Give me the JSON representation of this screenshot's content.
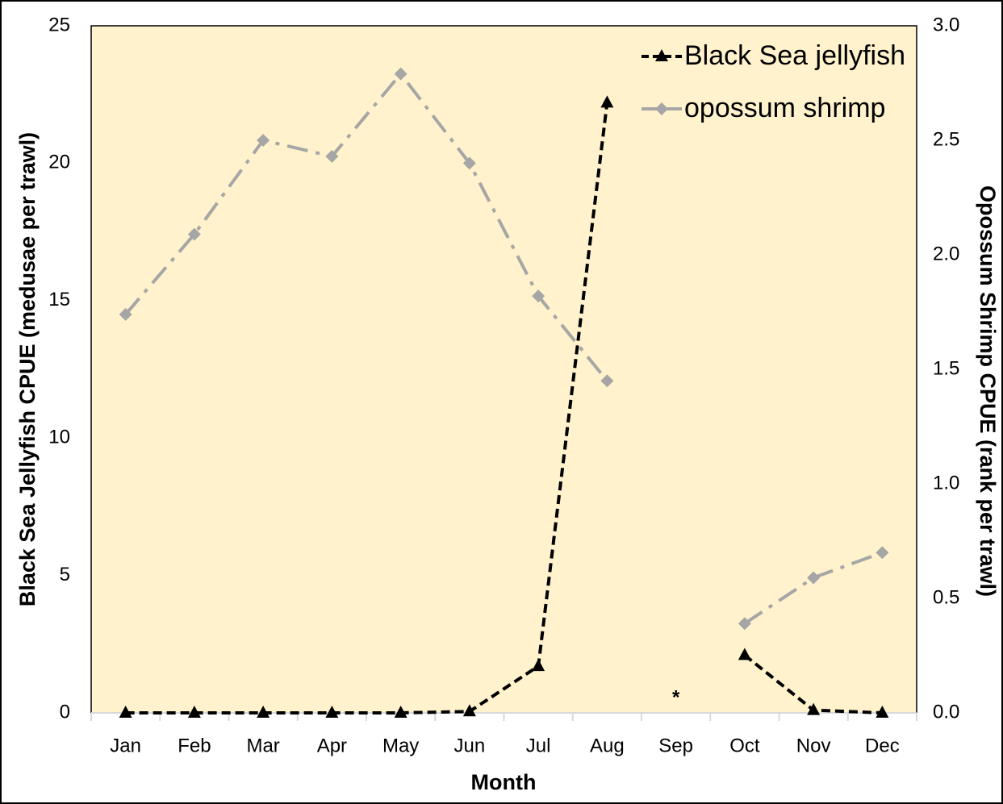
{
  "chart_data": {
    "type": "line",
    "x_label": "Month",
    "y_label": "Black Sea Jellyfish CPUE (medusae per trawl)",
    "y2_label": "Opossum Shrimp CPUE (rank per trawl)",
    "categories": [
      "Jan",
      "Feb",
      "Mar",
      "Apr",
      "May",
      "Jun",
      "Jul",
      "Aug",
      "Sep",
      "Oct",
      "Nov",
      "Dec"
    ],
    "series": [
      {
        "name": "Black Sea jellyfish",
        "color": "#000000",
        "line_style": "dashed",
        "marker": "triangle",
        "values": [
          0,
          0,
          0,
          0,
          0,
          0.05,
          1.7,
          22.2,
          null,
          2.1,
          0.1,
          0
        ]
      },
      {
        "name": "opossum shrimp",
        "color": "#a6a6a6",
        "line_style": "dash-dot",
        "marker": "diamond",
        "axis": "y2",
        "values": [
          1.74,
          2.09,
          2.5,
          2.43,
          2.79,
          2.4,
          1.82,
          1.45,
          null,
          0.39,
          0.59,
          0.7
        ]
      }
    ],
    "annotations": [
      {
        "text": "*",
        "category": "Sep"
      }
    ],
    "ylim": [
      0,
      25
    ],
    "yticks": [
      0,
      5,
      10,
      15,
      20,
      25
    ],
    "y2lim": [
      0,
      3
    ],
    "y2ticks": [
      {
        "value": 0,
        "label": "0.0"
      },
      0.5,
      {
        "value": 1,
        "label": "1.0"
      },
      1.5,
      {
        "value": 2,
        "label": "2.0"
      },
      2.5,
      {
        "value": 3,
        "label": "3.0"
      }
    ],
    "background": "#fff2cc",
    "legend": "top-right"
  }
}
